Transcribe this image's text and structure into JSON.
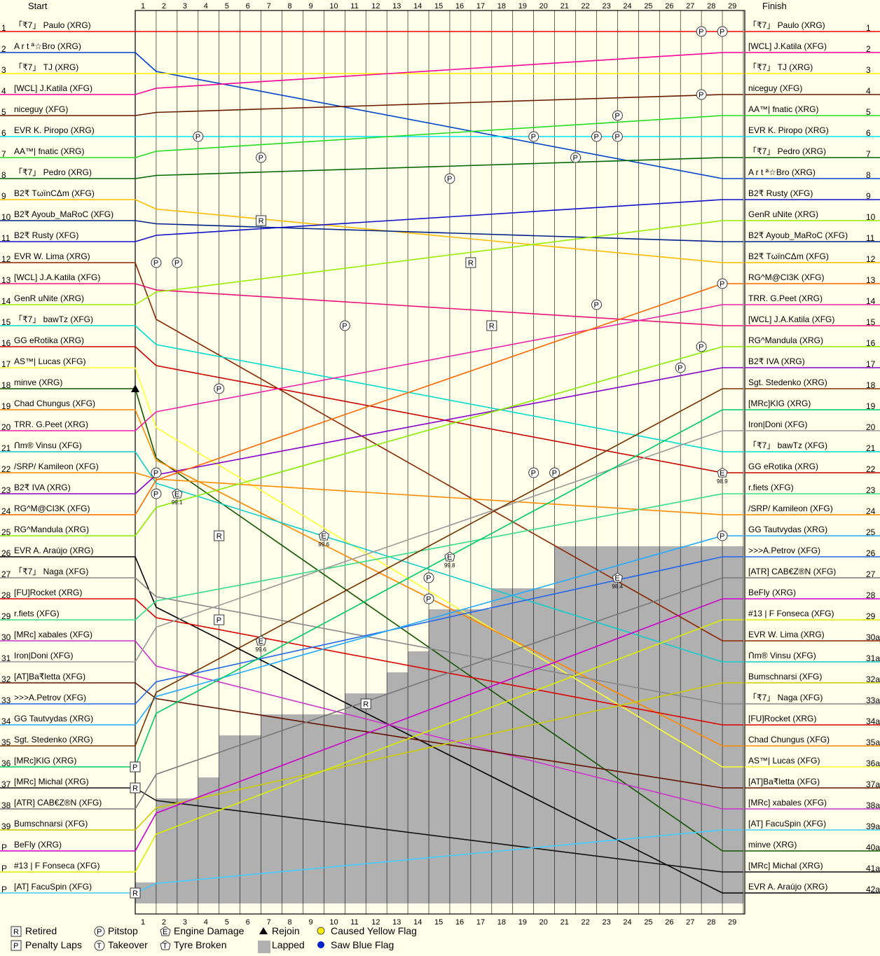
{
  "chart_data": {
    "type": "line",
    "start_label": "Start",
    "finish_label": "Finish",
    "laps": [
      1,
      2,
      3,
      4,
      5,
      6,
      7,
      8,
      9,
      10,
      11,
      12,
      13,
      14,
      15,
      16,
      17,
      18,
      19,
      20,
      21,
      22,
      23,
      24,
      25,
      26,
      27,
      28,
      29
    ],
    "start_positions": [
      "1",
      "2",
      "3",
      "4",
      "5",
      "6",
      "7",
      "8",
      "9",
      "10",
      "11",
      "12",
      "13",
      "14",
      "15",
      "16",
      "17",
      "18",
      "19",
      "20",
      "21",
      "22",
      "23",
      "24",
      "25",
      "26",
      "27",
      "28",
      "29",
      "30",
      "31",
      "32",
      "33",
      "34",
      "35",
      "36",
      "37",
      "38",
      "39",
      "P",
      "P",
      "P"
    ],
    "finish_positions": [
      "1",
      "2",
      "3",
      "4",
      "5",
      "6",
      "7",
      "8",
      "9",
      "10",
      "11",
      "12",
      "13",
      "14",
      "15",
      "16",
      "17",
      "18",
      "19",
      "20",
      "21",
      "22",
      "23",
      "24",
      "25",
      "26",
      "27",
      "28",
      "29",
      "30a",
      "31a",
      "32a",
      "33a",
      "34a",
      "35a",
      "36a",
      "37a",
      "38a",
      "39a",
      "40a",
      "41a",
      "42a"
    ],
    "start_grid": [
      "「₹7」 Paulo (XRG)",
      "A r t ª☆Bro (XRG)",
      "「₹7」 TJ (XRG)",
      "[WCL] J.Katila (XFG)",
      "niceguy (XFG)",
      "EVR K. Piropo (XRG)",
      "AA™| fnatic (XRG)",
      "「₹7」 Pedro (XRG)",
      "B2₹ TωïnCΔm (XFG)",
      "B2₹ Ayoub_MaRoC (XFG)",
      "B2₹ Rusty (XFG)",
      "EVR W. Lima (XRG)",
      "[WCL] J.A.Katila (XFG)",
      "GenR uNite (XRG)",
      "「₹7」 bawTz (XFG)",
      "GG eRotika (XRG)",
      "AS™| Lucas (XFG)",
      "minve (XRG)",
      "Chad Chungus (XFG)",
      "TRR. G.Peet (XRG)",
      "Ո԰m® Vinsu (XFG)",
      "/SRP/ Kamileon (XFG)",
      "B2₹ IVA (XRG)",
      "RG^M@CI3K (XFG)",
      "RG^Mandula (XRG)",
      "EVR A. Araújo (XRG)",
      "「₹7」 Naga (XFG)",
      "[FU]Rocket (XRG)",
      "r.fiets (XFG)",
      "[MRc] xabales (XFG)",
      "Iron|Doni (XFG)",
      "[AT]Ba₹letta (XFG)",
      ">>>A.Petrov (XFG)",
      "GG Tautvydas (XRG)",
      "Sgt. Stedenko (XRG)",
      "[MRc]KIG (XRG)",
      "[MRc] Michal (XRG)",
      "[ATR] CAB€Z®N (XFG)",
      "Bumschnarsi (XFG)",
      "BeFly (XRG)",
      "#13 | F Fonseca (XFG)",
      "[AT] FacuSpin (XFG)"
    ],
    "finish_order": [
      "「₹7」 Paulo (XRG)",
      "[WCL] J.Katila (XFG)",
      "「₹7」 TJ (XRG)",
      "niceguy (XFG)",
      "AA™| fnatic (XRG)",
      "EVR K. Piropo (XRG)",
      "「₹7」 Pedro (XRG)",
      "A r t ª☆Bro (XRG)",
      "B2₹ Rusty (XFG)",
      "GenR uNite (XRG)",
      "B2₹ Ayoub_MaRoC (XFG)",
      "B2₹ TωïnCΔm (XFG)",
      "RG^M@CI3K (XFG)",
      "TRR. G.Peet (XRG)",
      "[WCL] J.A.Katila (XFG)",
      "RG^Mandula (XRG)",
      "B2₹ IVA (XRG)",
      "Sgt. Stedenko (XRG)",
      "[MRc]KIG (XRG)",
      "Iron|Doni (XFG)",
      "「₹7」 bawTz (XFG)",
      "GG eRotika (XRG)",
      "r.fiets (XFG)",
      "/SRP/ Kamileon (XFG)",
      "GG Tautvydas (XRG)",
      ">>>A.Petrov (XFG)",
      "[ATR] CAB€Z®N (XFG)",
      "BeFly (XRG)",
      "#13 | F Fonseca (XFG)",
      "EVR W. Lima (XRG)",
      "Ո԰m® Vinsu (XFG)",
      "Bumschnarsi (XFG)",
      "「₹7」 Naga (XFG)",
      "[FU]Rocket (XRG)",
      "Chad Chungus (XFG)",
      "AS™| Lucas (XFG)",
      "[AT]Ba₹letta (XFG)",
      "[MRc] xabales (XFG)",
      "[AT] FacuSpin (XFG)",
      "minve (XRG)",
      "[MRc] Michal (XRG)",
      "EVR A. Araújo (XRG)"
    ],
    "driver_colors": {
      "「₹7」 Paulo (XRG)": "#ff0000",
      "A r t ª☆Bro (XRG)": "#0044cc",
      "「₹7」 TJ (XRG)": "#ffee00",
      "[WCL] J.Katila (XFG)": "#ff0099",
      "niceguy (XFG)": "#6b1a00",
      "EVR K. Piropo (XRG)": "#00e0ff",
      "AA™| fnatic (XRG)": "#22dd22",
      "「₹7」 Pedro (XRG)": "#006600",
      "B2₹ TωïnCΔm (XFG)": "#ffbb00",
      "B2₹ Ayoub_MaRoC (XFG)": "#002288",
      "B2₹ Rusty (XFG)": "#1111cc",
      "EVR W. Lima (XRG)": "#8b2500",
      "[WCL] J.A.Katila (XFG)": "#ee1177",
      "GenR uNite (XRG)": "#99ee00",
      "「₹7」 bawTz (XFG)": "#00ddcc",
      "GG eRotika (XRG)": "#cc0000",
      "AS™| Lucas (XFG)": "#ffff33",
      "minve (XRG)": "#115500",
      "Chad Chungus (XFG)": "#ff8800",
      "TRR. G.Peet (XRG)": "#ee22aa",
      "Ո԰m® Vinsu (XFG)": "#11cccc",
      "/SRP/ Kamileon (XFG)": "#ff8c00",
      "B2₹ IVA (XRG)": "#8800cc",
      "RG^M@CI3K (XFG)": "#ff6600",
      "RG^Mandula (XRG)": "#88ee00",
      "EVR A. Araújo (XRG)": "#000000",
      "「₹7」 Naga (XFG)": "#888888",
      "[FU]Rocket (XRG)": "#dd0000",
      "r.fiets (XFG)": "#33dd88",
      "[MRc] xabales (XFG)": "#cc33cc",
      "Iron|Doni (XFG)": "#999999",
      "[AT]Ba₹letta (XFG)": "#661100",
      ">>>A.Petrov (XFG)": "#2266ee",
      "GG Tautvydas (XRG)": "#22aaff",
      "Sgt. Stedenko (XRG)": "#773300",
      "[MRc]KIG (XRG)": "#00cc66",
      "[MRc] Michal (XRG)": "#111111",
      "[ATR] CAB€Z®N (XFG)": "#777777",
      "Bumschnarsi (XFG)": "#cccc00",
      "BeFly (XRG)": "#cc00cc",
      "#13 | F Fonseca (XFG)": "#ddee00",
      "[AT] FacuSpin (XFG)": "#44ccff"
    },
    "lapped_area_start_position": [
      42,
      38,
      38,
      37,
      35,
      35,
      34,
      34,
      34,
      34,
      33,
      33,
      32,
      31,
      29,
      29,
      29,
      28,
      28,
      28,
      26,
      26,
      26,
      26,
      26,
      26,
      26,
      26,
      26
    ],
    "events": [
      {
        "type": "pitstop",
        "lap": 27,
        "position": 1
      },
      {
        "type": "pitstop",
        "lap": 28,
        "position": 1
      },
      {
        "type": "pitstop",
        "lap": 27,
        "position": 4
      },
      {
        "type": "pitstop",
        "lap": 23,
        "position": 5
      },
      {
        "type": "pitstop",
        "lap": 3,
        "position": 6
      },
      {
        "type": "pitstop",
        "lap": 19,
        "position": 6
      },
      {
        "type": "pitstop",
        "lap": 22,
        "position": 6
      },
      {
        "type": "pitstop",
        "lap": 23,
        "position": 6
      },
      {
        "type": "pitstop",
        "lap": 6,
        "position": 7
      },
      {
        "type": "pitstop",
        "lap": 21,
        "position": 7
      },
      {
        "type": "pitstop",
        "lap": 15,
        "position": 8
      },
      {
        "type": "pitstop",
        "lap": 1,
        "position": 12
      },
      {
        "type": "pitstop",
        "lap": 2,
        "position": 12
      },
      {
        "type": "pitstop",
        "lap": 28,
        "position": 13
      },
      {
        "type": "pitstop",
        "lap": 22,
        "position": 14
      },
      {
        "type": "pitstop",
        "lap": 10,
        "position": 15
      },
      {
        "type": "pitstop",
        "lap": 27,
        "position": 16
      },
      {
        "type": "pitstop",
        "lap": 26,
        "position": 17
      },
      {
        "type": "pitstop",
        "lap": 4,
        "position": 18
      },
      {
        "type": "pitstop",
        "lap": 1,
        "position": 22
      },
      {
        "type": "pitstop",
        "lap": 19,
        "position": 22
      },
      {
        "type": "pitstop",
        "lap": 20,
        "position": 22
      },
      {
        "type": "pitstop",
        "lap": 1,
        "position": 23
      },
      {
        "type": "pitstop",
        "lap": 28,
        "position": 25
      },
      {
        "type": "pitstop",
        "lap": 14,
        "position": 27
      },
      {
        "type": "pitstop",
        "lap": 14,
        "position": 28
      },
      {
        "type": "retired",
        "lap": 6,
        "position": 10
      },
      {
        "type": "retired",
        "lap": 16,
        "position": 12
      },
      {
        "type": "retired",
        "lap": 17,
        "position": 15
      },
      {
        "type": "retired",
        "lap": 4,
        "position": 25
      },
      {
        "type": "retired",
        "lap": 11,
        "position": 33
      },
      {
        "type": "retired",
        "lap": 0,
        "position": 37
      },
      {
        "type": "retired",
        "lap": 0,
        "position": 42
      },
      {
        "type": "rejoin",
        "lap": 0,
        "position": 18
      },
      {
        "type": "engine_damage",
        "lap": 2,
        "position": 23,
        "value": "99.1"
      },
      {
        "type": "engine_damage",
        "lap": 9,
        "position": 25,
        "value": "99.6"
      },
      {
        "type": "engine_damage",
        "lap": 15,
        "position": 26,
        "value": "99.8"
      },
      {
        "type": "engine_damage",
        "lap": 6,
        "position": 30,
        "value": "99.6"
      },
      {
        "type": "engine_damage",
        "lap": 28,
        "position": 22,
        "value": "98.9"
      },
      {
        "type": "engine_damage",
        "lap": 23,
        "position": 27,
        "value": "98.4"
      },
      {
        "type": "penalty_laps",
        "lap": 4,
        "position": 29
      },
      {
        "type": "penalty_laps",
        "lap": 0,
        "position": 36
      }
    ],
    "legend": [
      {
        "symbol": "R",
        "label": "Retired",
        "shape": "square"
      },
      {
        "symbol": "P",
        "label": "Penalty Laps",
        "shape": "square"
      },
      {
        "symbol": "P",
        "label": "Pitstop",
        "shape": "circle"
      },
      {
        "symbol": "T",
        "label": "Takeover",
        "shape": "circle"
      },
      {
        "symbol": "E",
        "label": "Engine Damage",
        "shape": "pentagon"
      },
      {
        "symbol": "T",
        "label": "Tyre Broken",
        "shape": "pentagon"
      },
      {
        "symbol": "",
        "label": "Rejoin",
        "shape": "triangle"
      },
      {
        "symbol": "",
        "label": "Lapped",
        "shape": "gray-rect"
      },
      {
        "symbol": "",
        "label": "Caused Yellow Flag",
        "shape": "yellow-dot"
      },
      {
        "symbol": "",
        "label": "Saw Blue Flag",
        "shape": "blue-dot"
      }
    ],
    "colors": {
      "background": "#ffffea",
      "grid": "#000000",
      "lapped": "#b0b0b0",
      "yellow_flag": "#ffee00",
      "blue_flag": "#0022cc"
    }
  }
}
